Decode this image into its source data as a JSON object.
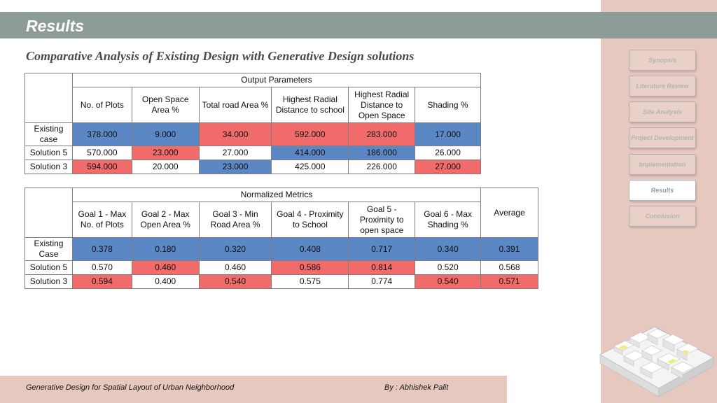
{
  "header": {
    "title": "Results"
  },
  "subtitle": "Comparative Analysis of Existing Design with Generative Design solutions",
  "colors": {
    "highlight_blue": "#5b87c5",
    "highlight_red": "#f26b6b",
    "header_gray": "#8d9c97",
    "panel_pink": "#e6c8bf"
  },
  "output_table": {
    "group_header": "Output Parameters",
    "columns": [
      "No. of Plots",
      "Open Space Area %",
      "Total road Area %",
      "Highest Radial Distance to school",
      "Highest Radial Distance to Open Space",
      "Shading %"
    ],
    "rows": [
      {
        "label": "Existing case",
        "values": [
          "378.000",
          "9.000",
          "34.000",
          "592.000",
          "283.000",
          "17.000"
        ]
      },
      {
        "label": "Solution 5",
        "values": [
          "570.000",
          "23.000",
          "27.000",
          "414.000",
          "186.000",
          "26.000"
        ]
      },
      {
        "label": "Solution 3",
        "values": [
          "594.000",
          "20.000",
          "23.000",
          "425.000",
          "226.000",
          "27.000"
        ]
      }
    ]
  },
  "normalized_table": {
    "group_header": "Normalized Metrics",
    "columns": [
      "Goal 1 - Max No. of Plots",
      "Goal 2 - Max Open Area %",
      "Goal 3 - Min Road Area %",
      "Goal 4 - Proximity to School",
      "Goal 5 - Proximity to open space",
      "Goal 6 - Max Shading %",
      "Average"
    ],
    "rows": [
      {
        "label": "Existing Case",
        "values": [
          "0.378",
          "0.180",
          "0.320",
          "0.408",
          "0.717",
          "0.340",
          "0.391"
        ]
      },
      {
        "label": "Solution 5",
        "values": [
          "0.570",
          "0.460",
          "0.460",
          "0.586",
          "0.814",
          "0.520",
          "0.568"
        ]
      },
      {
        "label": "Solution 3",
        "values": [
          "0.594",
          "0.400",
          "0.540",
          "0.575",
          "0.774",
          "0.540",
          "0.571"
        ]
      }
    ]
  },
  "nav": {
    "items": [
      {
        "label": "Synopsis"
      },
      {
        "label": "Literature Review"
      },
      {
        "label": "Site Analysis"
      },
      {
        "label": "Project Development"
      },
      {
        "label": "Implementation"
      },
      {
        "label": "Results"
      },
      {
        "label": "Conclusion"
      }
    ],
    "active": "Results"
  },
  "footer": {
    "left": "Generative Design for Spatial Layout of Urban Neighborhood",
    "right": "By : Abhishek Palit"
  }
}
